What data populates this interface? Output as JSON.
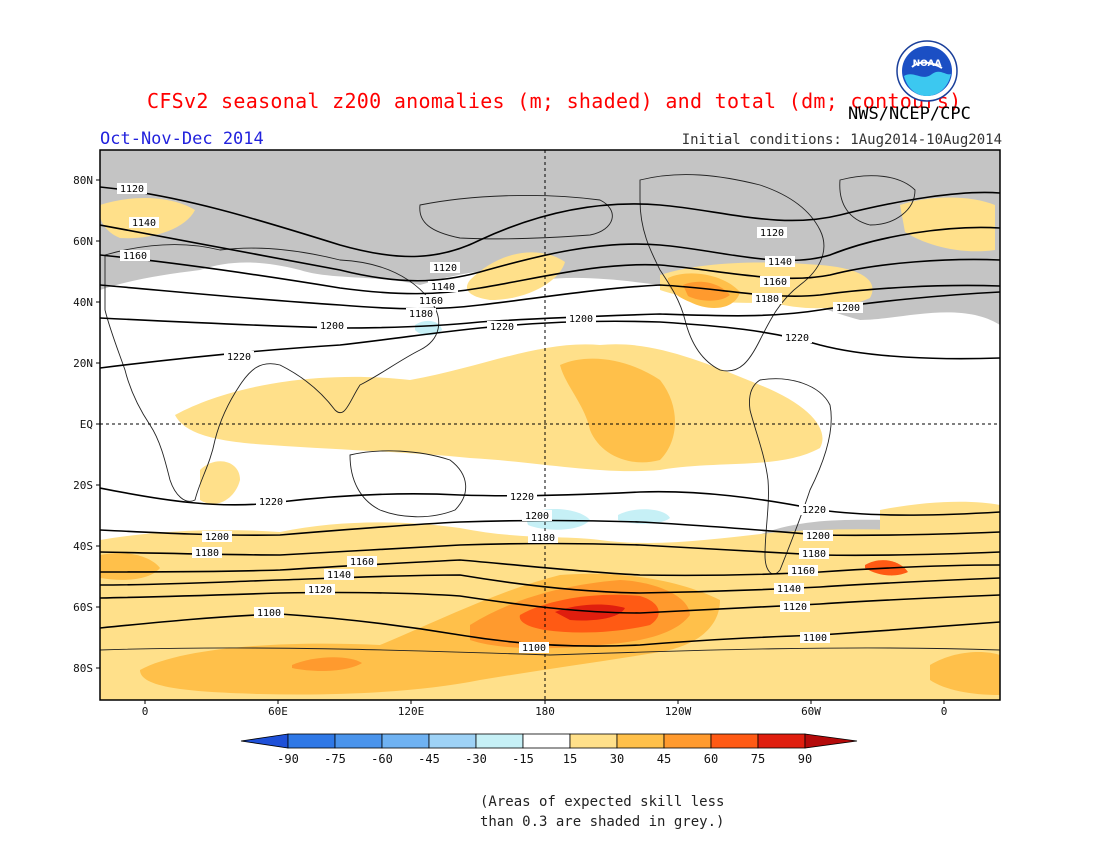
{
  "header": {
    "title": "CFSv2 seasonal z200 anomalies (m; shaded) and total (dm; contours)",
    "agency": "NWS/NCEP/CPC",
    "season": "Oct-Nov-Dec 2014",
    "initial_conditions": "Initial conditions: 1Aug2014-10Aug2014",
    "logo_text": "NOAA"
  },
  "map": {
    "lat_labels": [
      "80N",
      "60N",
      "40N",
      "20N",
      "EQ",
      "20S",
      "40S",
      "60S",
      "80S"
    ],
    "lon_labels": [
      "0",
      "60E",
      "120E",
      "180",
      "120W",
      "60W",
      "0"
    ],
    "contour_labels": [
      "1100",
      "1120",
      "1140",
      "1160",
      "1180",
      "1200",
      "1220"
    ]
  },
  "colorbar": {
    "labels": [
      "-90",
      "-75",
      "-60",
      "-45",
      "-30",
      "-15",
      "15",
      "30",
      "45",
      "60",
      "75",
      "90"
    ],
    "colors": [
      "#1e50d8",
      "#2f78e6",
      "#4a94ec",
      "#6fb2f2",
      "#9ed2f6",
      "#c6f0f6",
      "#ffffff",
      "#ffe08a",
      "#ffc04a",
      "#ff9a2e",
      "#ff5a14",
      "#e01e0e",
      "#b40a0a"
    ]
  },
  "footnote": {
    "line1": "(Areas of expected skill less",
    "line2": "than 0.3 are shaded in grey.)"
  }
}
